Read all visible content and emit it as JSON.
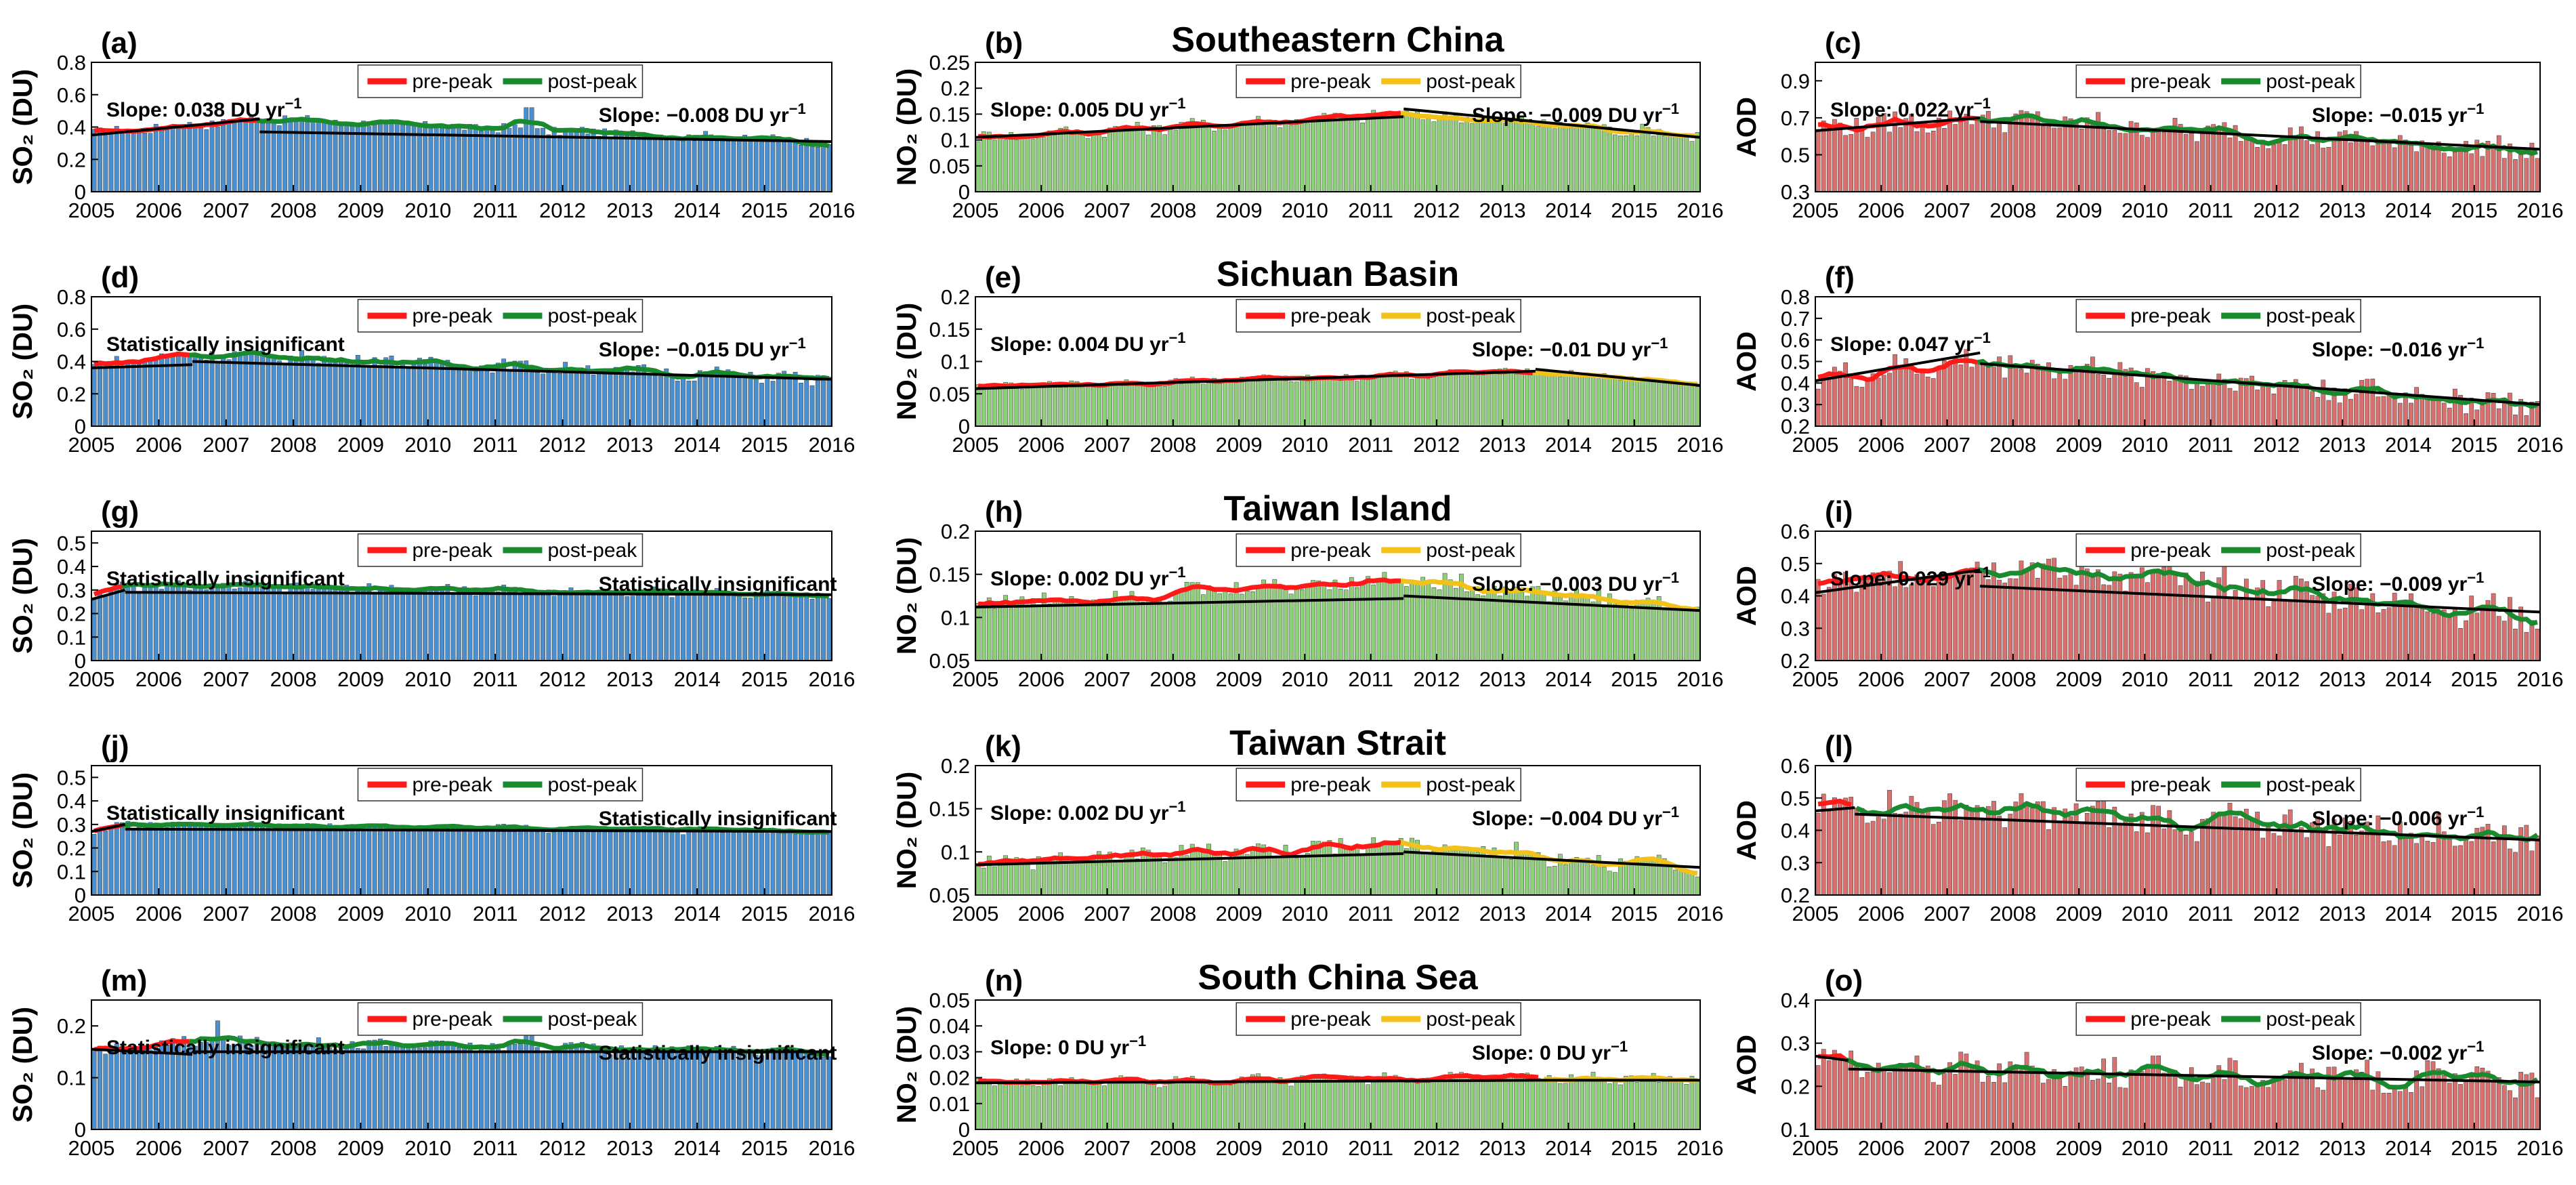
{
  "figure": {
    "column_variables": [
      "SO2 (DU)",
      "NO2 (DU)",
      "AOD"
    ],
    "regions": [
      "Southeastern China",
      "Sichuan Basin",
      "Taiwan Island",
      "Taiwan Strait",
      "South China Sea"
    ],
    "x_tick_labels": [
      "2005",
      "2006",
      "2007",
      "2008",
      "2009",
      "2010",
      "2011",
      "2012",
      "2013",
      "2014",
      "2015",
      "2016"
    ],
    "legend": {
      "pre_peak": "pre-peak",
      "post_peak": "post-peak"
    },
    "colors": {
      "so2_bars": "#4a90d0",
      "no2_bars": "#8ed07a",
      "aod_bars": "#d9706e",
      "pre_peak": "#ff1a1a",
      "post_peak_so2_aod": "#1a8a2e",
      "post_peak_no2": "#f2c21b",
      "trend": "#000000"
    }
  },
  "chart_data": [
    {
      "panel": "(a)",
      "type": "bar",
      "variable": "SO2",
      "ylabel": "SO₂ (DU)",
      "ylim": [
        0,
        0.8
      ],
      "yticks": [
        0,
        0.2,
        0.4,
        0.6,
        0.8
      ],
      "xlim": [
        2005,
        2016
      ],
      "x_ticks": [
        2005,
        2006,
        2007,
        2008,
        2009,
        2010,
        2011,
        2012,
        2013,
        2014,
        2015,
        2016
      ],
      "series_baseline": {
        "pre_start": 0.36,
        "peak": 0.45,
        "post_end": 0.31
      },
      "peak_year": 2007.5,
      "pre_line": [
        0.35,
        0.45
      ],
      "post_line": [
        0.37,
        0.31
      ],
      "annotation_left": "Slope: 0.038 DU yr",
      "annotation_right": "Slope: −0.008 DU yr",
      "spikes": [
        [
          2007.9,
          0.47
        ],
        [
          2011.5,
          0.52
        ]
      ],
      "noise": 0.03,
      "title": ""
    },
    {
      "panel": "(b)",
      "type": "bar",
      "variable": "NO2",
      "ylabel": "NO₂ (DU)",
      "ylim": [
        0,
        0.25
      ],
      "yticks": [
        0,
        0.05,
        0.1,
        0.15,
        0.2,
        0.25
      ],
      "xlim": [
        2005,
        2016
      ],
      "x_ticks": [
        2005,
        2006,
        2007,
        2008,
        2009,
        2010,
        2011,
        2012,
        2013,
        2014,
        2015,
        2016
      ],
      "series_baseline": {
        "pre_start": 0.105,
        "peak": 0.15,
        "post_end": 0.11
      },
      "peak_year": 2011.5,
      "pre_line": [
        0.105,
        0.145
      ],
      "post_line": [
        0.16,
        0.105
      ],
      "annotation_left": "Slope: 0.005 DU yr",
      "annotation_right": "Slope: −0.009 DU yr",
      "spikes": [],
      "noise": 0.012,
      "title": "Southeastern China"
    },
    {
      "panel": "(c)",
      "type": "bar",
      "variable": "AOD",
      "ylabel": "AOD",
      "ylim": [
        0.3,
        1.0
      ],
      "yticks": [
        0.3,
        0.5,
        0.7,
        0.9
      ],
      "xlim": [
        2005,
        2016
      ],
      "x_ticks": [
        2005,
        2006,
        2007,
        2008,
        2009,
        2010,
        2011,
        2012,
        2013,
        2014,
        2015,
        2016
      ],
      "series_baseline": {
        "pre_start": 0.64,
        "peak": 0.7,
        "post_end": 0.52
      },
      "peak_year": 2007.5,
      "pre_line": [
        0.63,
        0.7
      ],
      "post_line": [
        0.68,
        0.53
      ],
      "annotation_left": "Slope: 0.022 yr",
      "annotation_right": "Slope: −0.015 yr",
      "spikes": [],
      "noise": 0.06,
      "title": ""
    },
    {
      "panel": "(d)",
      "type": "bar",
      "variable": "SO2",
      "ylabel": "SO₂ (DU)",
      "ylim": [
        0,
        0.8
      ],
      "yticks": [
        0,
        0.2,
        0.4,
        0.6,
        0.8
      ],
      "xlim": [
        2005,
        2016
      ],
      "x_ticks": [
        2005,
        2006,
        2007,
        2008,
        2009,
        2010,
        2011,
        2012,
        2013,
        2014,
        2015,
        2016
      ],
      "series_baseline": {
        "pre_start": 0.37,
        "peak": 0.45,
        "post_end": 0.29
      },
      "peak_year": 2006.5,
      "pre_line": [
        0.36,
        0.38
      ],
      "post_line": [
        0.4,
        0.29
      ],
      "annotation_left": "Statistically insignificant",
      "annotation_right": "Slope: −0.015 DU yr",
      "spikes": [],
      "noise": 0.04,
      "title": ""
    },
    {
      "panel": "(e)",
      "type": "bar",
      "variable": "NO2",
      "ylabel": "NO₂ (DU)",
      "ylim": [
        0,
        0.2
      ],
      "yticks": [
        0,
        0.05,
        0.1,
        0.15,
        0.2
      ],
      "xlim": [
        2005,
        2016
      ],
      "x_ticks": [
        2005,
        2006,
        2007,
        2008,
        2009,
        2010,
        2011,
        2012,
        2013,
        2014,
        2015,
        2016
      ],
      "series_baseline": {
        "pre_start": 0.06,
        "peak": 0.085,
        "post_end": 0.065
      },
      "peak_year": 2013.5,
      "pre_line": [
        0.058,
        0.085
      ],
      "post_line": [
        0.088,
        0.063
      ],
      "annotation_left": "Slope: 0.004 DU yr",
      "annotation_right": "Slope: −0.01 DU yr",
      "spikes": [],
      "noise": 0.006,
      "title": "Sichuan Basin"
    },
    {
      "panel": "(f)",
      "type": "bar",
      "variable": "AOD",
      "ylabel": "AOD",
      "ylim": [
        0.2,
        0.8
      ],
      "yticks": [
        0.2,
        0.3,
        0.4,
        0.5,
        0.6,
        0.7,
        0.8
      ],
      "xlim": [
        2005,
        2016
      ],
      "x_ticks": [
        2005,
        2006,
        2007,
        2008,
        2009,
        2010,
        2011,
        2012,
        2013,
        2014,
        2015,
        2016
      ],
      "series_baseline": {
        "pre_start": 0.42,
        "peak": 0.5,
        "post_end": 0.3
      },
      "peak_year": 2007.5,
      "pre_line": [
        0.41,
        0.54
      ],
      "post_line": [
        0.49,
        0.3
      ],
      "annotation_left": "Slope: 0.047 yr",
      "annotation_right": "Slope: −0.016 yr",
      "spikes": [],
      "noise": 0.06,
      "title": ""
    },
    {
      "panel": "(g)",
      "type": "bar",
      "variable": "SO2",
      "ylabel": "SO₂ (DU)",
      "ylim": [
        0,
        0.55
      ],
      "yticks": [
        0,
        0.1,
        0.2,
        0.3,
        0.4,
        0.5
      ],
      "xlim": [
        2005,
        2016
      ],
      "x_ticks": [
        2005,
        2006,
        2007,
        2008,
        2009,
        2010,
        2011,
        2012,
        2013,
        2014,
        2015,
        2016
      ],
      "series_baseline": {
        "pre_start": 0.27,
        "peak": 0.32,
        "post_end": 0.28
      },
      "peak_year": 2005.5,
      "pre_line": [
        0.26,
        0.3
      ],
      "post_line": [
        0.29,
        0.28
      ],
      "annotation_left": "Statistically insignificant",
      "annotation_right": "Statistically insignificant",
      "spikes": [],
      "noise": 0.02,
      "title": ""
    },
    {
      "panel": "(h)",
      "type": "bar",
      "variable": "NO2",
      "ylabel": "NO₂ (DU)",
      "ylim": [
        0.05,
        0.2
      ],
      "yticks": [
        0.05,
        0.1,
        0.15,
        0.2
      ],
      "xlim": [
        2005,
        2016
      ],
      "x_ticks": [
        2005,
        2006,
        2007,
        2008,
        2009,
        2010,
        2011,
        2012,
        2013,
        2014,
        2015,
        2016
      ],
      "series_baseline": {
        "pre_start": 0.115,
        "peak": 0.145,
        "post_end": 0.11
      },
      "peak_year": 2011.5,
      "pre_line": [
        0.112,
        0.122
      ],
      "post_line": [
        0.125,
        0.108
      ],
      "annotation_left": "Slope: 0.002 DU yr",
      "annotation_right": "Slope: −0.003 DU yr",
      "spikes": [],
      "noise": 0.01,
      "title": "Taiwan Island"
    },
    {
      "panel": "(i)",
      "type": "bar",
      "variable": "AOD",
      "ylabel": "AOD",
      "ylim": [
        0.2,
        0.6
      ],
      "yticks": [
        0.2,
        0.3,
        0.4,
        0.5,
        0.6
      ],
      "xlim": [
        2005,
        2016
      ],
      "x_ticks": [
        2005,
        2006,
        2007,
        2008,
        2009,
        2010,
        2011,
        2012,
        2013,
        2014,
        2015,
        2016
      ],
      "series_baseline": {
        "pre_start": 0.42,
        "peak": 0.5,
        "post_end": 0.34
      },
      "peak_year": 2007.5,
      "pre_line": [
        0.41,
        0.48
      ],
      "post_line": [
        0.43,
        0.35
      ],
      "annotation_left": "Slope: 0.029 yr",
      "annotation_right": "Slope: −0.009 yr",
      "spikes": [],
      "noise": 0.05,
      "title": ""
    },
    {
      "panel": "(j)",
      "type": "bar",
      "variable": "SO2",
      "ylabel": "SO₂ (DU)",
      "ylim": [
        0,
        0.55
      ],
      "yticks": [
        0,
        0.1,
        0.2,
        0.3,
        0.4,
        0.5
      ],
      "xlim": [
        2005,
        2016
      ],
      "x_ticks": [
        2005,
        2006,
        2007,
        2008,
        2009,
        2010,
        2011,
        2012,
        2013,
        2014,
        2015,
        2016
      ],
      "series_baseline": {
        "pre_start": 0.27,
        "peak": 0.3,
        "post_end": 0.27
      },
      "peak_year": 2005.5,
      "pre_line": [
        0.27,
        0.3
      ],
      "post_line": [
        0.28,
        0.27
      ],
      "annotation_left": "Statistically insignificant",
      "annotation_right": "Statistically insignificant",
      "spikes": [],
      "noise": 0.015,
      "title": ""
    },
    {
      "panel": "(k)",
      "type": "bar",
      "variable": "NO2",
      "ylabel": "NO₂ (DU)",
      "ylim": [
        0.05,
        0.2
      ],
      "yticks": [
        0.05,
        0.1,
        0.15,
        0.2
      ],
      "xlim": [
        2005,
        2016
      ],
      "x_ticks": [
        2005,
        2006,
        2007,
        2008,
        2009,
        2010,
        2011,
        2012,
        2013,
        2014,
        2015,
        2016
      ],
      "series_baseline": {
        "pre_start": 0.088,
        "peak": 0.11,
        "post_end": 0.08
      },
      "peak_year": 2011.5,
      "pre_line": [
        0.085,
        0.098
      ],
      "post_line": [
        0.1,
        0.082
      ],
      "annotation_left": "Slope: 0.002 DU yr",
      "annotation_right": "Slope: −0.004 DU yr",
      "spikes": [],
      "noise": 0.01,
      "title": "Taiwan Strait"
    },
    {
      "panel": "(l)",
      "type": "bar",
      "variable": "AOD",
      "ylabel": "AOD",
      "ylim": [
        0.2,
        0.6
      ],
      "yticks": [
        0.2,
        0.3,
        0.4,
        0.5,
        0.6
      ],
      "xlim": [
        2005,
        2016
      ],
      "x_ticks": [
        2005,
        2006,
        2007,
        2008,
        2009,
        2010,
        2011,
        2012,
        2013,
        2014,
        2015,
        2016
      ],
      "series_baseline": {
        "pre_start": 0.45,
        "peak": 0.48,
        "post_end": 0.38
      },
      "peak_year": 2005.6,
      "pre_line": [
        0.46,
        0.47
      ],
      "post_line": [
        0.45,
        0.37
      ],
      "annotation_left": "",
      "annotation_right": "Slope: −0.006 yr",
      "spikes": [],
      "noise": 0.05,
      "title": ""
    },
    {
      "panel": "(m)",
      "type": "bar",
      "variable": "SO2",
      "ylabel": "SO₂ (DU)",
      "ylim": [
        0,
        0.25
      ],
      "yticks": [
        0,
        0.1,
        0.2
      ],
      "xlim": [
        2005,
        2016
      ],
      "x_ticks": [
        2005,
        2006,
        2007,
        2008,
        2009,
        2010,
        2011,
        2012,
        2013,
        2014,
        2015,
        2016
      ],
      "series_baseline": {
        "pre_start": 0.15,
        "peak": 0.17,
        "post_end": 0.15
      },
      "peak_year": 2006.5,
      "pre_line": [
        0.155,
        0.145
      ],
      "post_line": [
        0.15,
        0.15
      ],
      "annotation_left": "Statistically insignificant",
      "annotation_right": "Statistically insignificant",
      "spikes": [
        [
          2006.9,
          0.21
        ],
        [
          2011.5,
          0.19
        ]
      ],
      "noise": 0.01,
      "title": ""
    },
    {
      "panel": "(n)",
      "type": "bar",
      "variable": "NO2",
      "ylabel": "NO₂ (DU)",
      "ylim": [
        0,
        0.05
      ],
      "yticks": [
        0,
        0.01,
        0.02,
        0.03,
        0.04,
        0.05
      ],
      "xlim": [
        2005,
        2016
      ],
      "x_ticks": [
        2005,
        2006,
        2007,
        2008,
        2009,
        2010,
        2011,
        2012,
        2013,
        2014,
        2015,
        2016
      ],
      "series_baseline": {
        "pre_start": 0.018,
        "peak": 0.02,
        "post_end": 0.019
      },
      "peak_year": 2013.6,
      "pre_line": [
        0.018,
        0.019
      ],
      "post_line": [
        0.019,
        0.019
      ],
      "annotation_left": "Slope: 0 DU yr",
      "annotation_right": "Slope: 0 DU yr",
      "spikes": [],
      "noise": 0.002,
      "title": "South China Sea"
    },
    {
      "panel": "(o)",
      "type": "bar",
      "variable": "AOD",
      "ylabel": "AOD",
      "ylim": [
        0.1,
        0.4
      ],
      "yticks": [
        0.1,
        0.2,
        0.3,
        0.4
      ],
      "xlim": [
        2005,
        2016
      ],
      "x_ticks": [
        2005,
        2006,
        2007,
        2008,
        2009,
        2010,
        2011,
        2012,
        2013,
        2014,
        2015,
        2016
      ],
      "series_baseline": {
        "pre_start": 0.27,
        "peak": 0.25,
        "post_end": 0.21
      },
      "peak_year": 2005.5,
      "pre_line": [
        0.27,
        0.26
      ],
      "post_line": [
        0.24,
        0.21
      ],
      "annotation_left": "",
      "annotation_right": "Slope: −0.002 yr",
      "spikes": [],
      "noise": 0.035,
      "title": ""
    }
  ]
}
